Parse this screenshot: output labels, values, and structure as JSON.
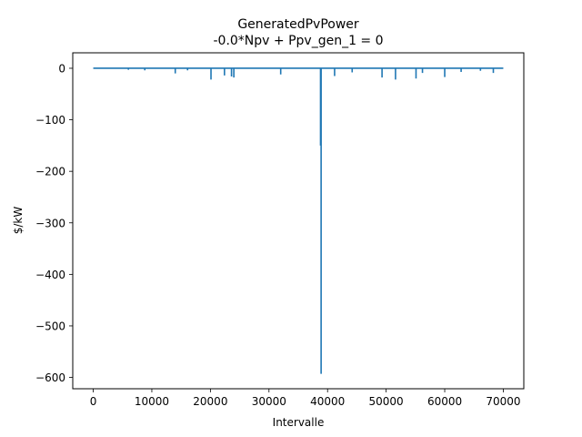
{
  "chart_data": {
    "type": "line",
    "title": "GeneratedPvPower",
    "subtitle": "-0.0*Npv + Ppv_gen_1 = 0",
    "xlabel": "Intervalle",
    "ylabel": "$/kW",
    "xlim": [
      -3500,
      73500
    ],
    "ylim": [
      -622,
      30
    ],
    "grid": false,
    "line_color": "#1f77b4",
    "xticks": [
      0,
      10000,
      20000,
      30000,
      40000,
      50000,
      60000,
      70000
    ],
    "yticks": [
      0,
      -100,
      -200,
      -300,
      -400,
      -500,
      -600
    ],
    "series": [
      {
        "x": [
          0,
          6000,
          6000,
          6000,
          8800,
          8800,
          8800,
          14000,
          14000,
          14000,
          16100,
          16100,
          16100,
          20100,
          20100,
          20100,
          22400,
          22400,
          22400,
          23600,
          23600,
          23600,
          24000,
          24000,
          24000,
          32000,
          32000,
          32000,
          38800,
          38800,
          38800,
          38900,
          38900,
          38900,
          41200,
          41200,
          41200,
          44200,
          44200,
          44200,
          49300,
          49300,
          49300,
          51600,
          51600,
          51600,
          55100,
          55100,
          55100,
          56200,
          56200,
          56200,
          60000,
          60000,
          60000,
          62800,
          62800,
          62800,
          66100,
          66100,
          66100,
          68300,
          68300,
          68300,
          70000
        ],
        "y": [
          0,
          0,
          -3,
          0,
          0,
          -4,
          0,
          0,
          -10,
          0,
          0,
          -4,
          0,
          0,
          -22,
          0,
          0,
          -14,
          0,
          0,
          -16,
          0,
          0,
          -18,
          0,
          0,
          -12,
          0,
          0,
          -150,
          0,
          0,
          -593,
          0,
          0,
          -15,
          0,
          0,
          -8,
          0,
          0,
          -18,
          0,
          0,
          -22,
          0,
          0,
          -20,
          0,
          0,
          -9,
          0,
          0,
          -17,
          0,
          0,
          -7,
          0,
          0,
          -5,
          0,
          0,
          -9,
          0,
          0
        ]
      }
    ]
  }
}
